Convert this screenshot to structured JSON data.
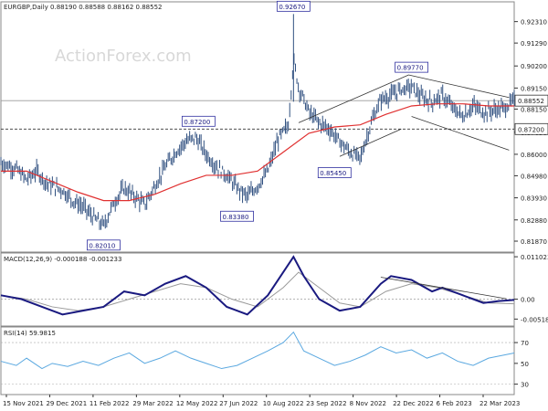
{
  "chart_data": {
    "type": "line",
    "header": {
      "symbol_label": "EURGBP,Daily",
      "ohlc": "0.88190 0.88588 0.88162 0.88552"
    },
    "watermark": "ActionForex.com",
    "x_ticks": [
      "15 Nov 2021",
      "29 Dec 2021",
      "11 Feb 2022",
      "29 Mar 2022",
      "12 May 2022",
      "27 Jun 2022",
      "10 Aug 2022",
      "23 Sep 2022",
      "8 Nov 2022",
      "22 Dec 2022",
      "6 Feb 2023",
      "22 Mar 2023"
    ],
    "price_panel": {
      "y_ticks": [
        "0.92310",
        "0.91290",
        "0.90200",
        "0.89150",
        "0.88150",
        "0.87050",
        "0.86000",
        "0.84980",
        "0.83930",
        "0.82880",
        "0.81870"
      ],
      "ylim": [
        0.8135,
        0.9325
      ],
      "current_price_label": "0.88552",
      "current_price": 0.88552,
      "support_label": "0.87200",
      "support_level": 0.872,
      "annotations": [
        {
          "label": "0.92670",
          "value": 0.9267,
          "x": 0.57
        },
        {
          "label": "0.89770",
          "value": 0.8977,
          "x": 0.8
        },
        {
          "label": "0.87200",
          "value": 0.872,
          "x": 0.385
        },
        {
          "label": "0.85450",
          "value": 0.8545,
          "x": 0.65
        },
        {
          "label": "0.83380",
          "value": 0.8338,
          "x": 0.46
        },
        {
          "label": "0.82010",
          "value": 0.8201,
          "x": 0.2
        }
      ],
      "price_series": [
        [
          0.0,
          0.856
        ],
        [
          0.03,
          0.853
        ],
        [
          0.05,
          0.848
        ],
        [
          0.07,
          0.852
        ],
        [
          0.09,
          0.846
        ],
        [
          0.12,
          0.843
        ],
        [
          0.14,
          0.838
        ],
        [
          0.16,
          0.835
        ],
        [
          0.18,
          0.83
        ],
        [
          0.2,
          0.826
        ],
        [
          0.22,
          0.837
        ],
        [
          0.24,
          0.844
        ],
        [
          0.26,
          0.84
        ],
        [
          0.28,
          0.836
        ],
        [
          0.3,
          0.845
        ],
        [
          0.32,
          0.854
        ],
        [
          0.34,
          0.861
        ],
        [
          0.36,
          0.866
        ],
        [
          0.38,
          0.868
        ],
        [
          0.4,
          0.86
        ],
        [
          0.42,
          0.854
        ],
        [
          0.44,
          0.85
        ],
        [
          0.46,
          0.844
        ],
        [
          0.48,
          0.84
        ],
        [
          0.5,
          0.845
        ],
        [
          0.52,
          0.852
        ],
        [
          0.54,
          0.867
        ],
        [
          0.56,
          0.874
        ],
        [
          0.57,
          0.905
        ],
        [
          0.58,
          0.892
        ],
        [
          0.6,
          0.88
        ],
        [
          0.62,
          0.875
        ],
        [
          0.64,
          0.872
        ],
        [
          0.66,
          0.866
        ],
        [
          0.68,
          0.861
        ],
        [
          0.7,
          0.858
        ],
        [
          0.72,
          0.874
        ],
        [
          0.74,
          0.886
        ],
        [
          0.76,
          0.888
        ],
        [
          0.78,
          0.891
        ],
        [
          0.8,
          0.892
        ],
        [
          0.82,
          0.887
        ],
        [
          0.84,
          0.885
        ],
        [
          0.86,
          0.888
        ],
        [
          0.88,
          0.882
        ],
        [
          0.9,
          0.878
        ],
        [
          0.92,
          0.883
        ],
        [
          0.94,
          0.88
        ],
        [
          0.96,
          0.881
        ],
        [
          0.98,
          0.882
        ],
        [
          1.0,
          0.8855
        ]
      ],
      "ma_series": [
        [
          0.0,
          0.852
        ],
        [
          0.05,
          0.852
        ],
        [
          0.1,
          0.847
        ],
        [
          0.15,
          0.842
        ],
        [
          0.2,
          0.838
        ],
        [
          0.25,
          0.838
        ],
        [
          0.3,
          0.841
        ],
        [
          0.35,
          0.846
        ],
        [
          0.4,
          0.85
        ],
        [
          0.45,
          0.85
        ],
        [
          0.5,
          0.852
        ],
        [
          0.55,
          0.861
        ],
        [
          0.6,
          0.87
        ],
        [
          0.65,
          0.873
        ],
        [
          0.7,
          0.874
        ],
        [
          0.75,
          0.879
        ],
        [
          0.8,
          0.883
        ],
        [
          0.85,
          0.884
        ],
        [
          0.9,
          0.884
        ],
        [
          0.95,
          0.883
        ],
        [
          1.0,
          0.883
        ]
      ],
      "channel": [
        {
          "x1": 0.58,
          "y1": 0.875,
          "x2": 0.795,
          "y2": 0.8978
        },
        {
          "x1": 0.66,
          "y1": 0.859,
          "x2": 0.78,
          "y2": 0.872
        }
      ],
      "wedge": [
        {
          "x1": 0.795,
          "y1": 0.8977,
          "x2": 0.99,
          "y2": 0.887
        },
        {
          "x1": 0.8,
          "y1": 0.878,
          "x2": 0.99,
          "y2": 0.862
        }
      ]
    },
    "macd_panel": {
      "label": "MACD(12,26,9) -0.000188 -0.001233",
      "y_ticks": [
        "0.011023",
        "0.00",
        "-0.005182"
      ],
      "ylim": [
        -0.007,
        0.012
      ],
      "zero": 0.0,
      "macd": [
        [
          0.0,
          0.001
        ],
        [
          0.04,
          0.0
        ],
        [
          0.08,
          -0.002
        ],
        [
          0.12,
          -0.004
        ],
        [
          0.16,
          -0.003
        ],
        [
          0.2,
          -0.002
        ],
        [
          0.24,
          0.002
        ],
        [
          0.28,
          0.001
        ],
        [
          0.32,
          0.004
        ],
        [
          0.36,
          0.006
        ],
        [
          0.4,
          0.003
        ],
        [
          0.44,
          -0.002
        ],
        [
          0.48,
          -0.004
        ],
        [
          0.52,
          0.001
        ],
        [
          0.55,
          0.007
        ],
        [
          0.57,
          0.011
        ],
        [
          0.59,
          0.006
        ],
        [
          0.62,
          0.0
        ],
        [
          0.66,
          -0.003
        ],
        [
          0.7,
          -0.002
        ],
        [
          0.74,
          0.004
        ],
        [
          0.76,
          0.006
        ],
        [
          0.8,
          0.005
        ],
        [
          0.84,
          0.002
        ],
        [
          0.86,
          0.003
        ],
        [
          0.9,
          0.001
        ],
        [
          0.94,
          -0.001
        ],
        [
          0.97,
          -0.0005
        ],
        [
          1.0,
          -0.0002
        ]
      ],
      "signal": [
        [
          0.0,
          0.001
        ],
        [
          0.05,
          0.0
        ],
        [
          0.1,
          -0.002
        ],
        [
          0.15,
          -0.003
        ],
        [
          0.2,
          -0.002
        ],
        [
          0.25,
          0.0
        ],
        [
          0.3,
          0.002
        ],
        [
          0.35,
          0.004
        ],
        [
          0.4,
          0.003
        ],
        [
          0.45,
          0.0
        ],
        [
          0.5,
          -0.002
        ],
        [
          0.55,
          0.003
        ],
        [
          0.58,
          0.007
        ],
        [
          0.62,
          0.003
        ],
        [
          0.66,
          -0.001
        ],
        [
          0.7,
          -0.002
        ],
        [
          0.75,
          0.002
        ],
        [
          0.8,
          0.004
        ],
        [
          0.85,
          0.003
        ],
        [
          0.9,
          0.001
        ],
        [
          0.95,
          -0.001
        ],
        [
          1.0,
          -0.0012
        ]
      ],
      "trendline": {
        "x1": 0.74,
        "y1": 0.0057,
        "x2": 0.985,
        "y2": 0.0001
      }
    },
    "rsi_panel": {
      "label": "RSI(14) 59.9815",
      "y_ticks": [
        "70",
        "50",
        "30"
      ],
      "ylim": [
        20,
        85
      ],
      "levels": [
        70,
        30
      ],
      "rsi": [
        [
          0.0,
          52
        ],
        [
          0.03,
          48
        ],
        [
          0.05,
          55
        ],
        [
          0.08,
          45
        ],
        [
          0.1,
          50
        ],
        [
          0.13,
          47
        ],
        [
          0.16,
          52
        ],
        [
          0.19,
          48
        ],
        [
          0.22,
          55
        ],
        [
          0.25,
          60
        ],
        [
          0.28,
          50
        ],
        [
          0.31,
          55
        ],
        [
          0.34,
          62
        ],
        [
          0.37,
          55
        ],
        [
          0.4,
          50
        ],
        [
          0.43,
          45
        ],
        [
          0.46,
          48
        ],
        [
          0.49,
          55
        ],
        [
          0.52,
          62
        ],
        [
          0.55,
          70
        ],
        [
          0.57,
          80
        ],
        [
          0.59,
          62
        ],
        [
          0.62,
          55
        ],
        [
          0.65,
          48
        ],
        [
          0.68,
          52
        ],
        [
          0.71,
          58
        ],
        [
          0.74,
          66
        ],
        [
          0.77,
          60
        ],
        [
          0.8,
          63
        ],
        [
          0.83,
          55
        ],
        [
          0.86,
          60
        ],
        [
          0.89,
          52
        ],
        [
          0.92,
          48
        ],
        [
          0.95,
          55
        ],
        [
          0.98,
          58
        ],
        [
          1.0,
          60
        ]
      ]
    }
  }
}
